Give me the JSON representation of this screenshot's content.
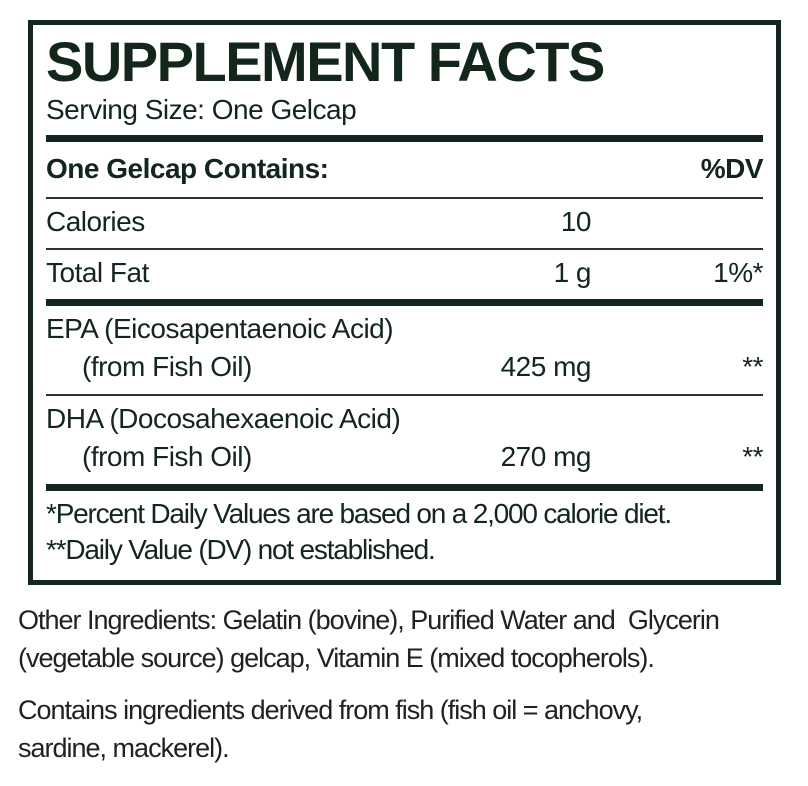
{
  "supplement_panel": {
    "title": "SUPPLEMENT FACTS",
    "serving_size": "Serving Size: One Gelcap",
    "columns": {
      "contains": "One Gelcap Contains:",
      "dv": "%DV"
    },
    "rows": [
      {
        "name": "Calories",
        "amount": "10",
        "dv": ""
      },
      {
        "name": "Total Fat",
        "amount": "1 g",
        "dv": "1%*"
      },
      {
        "name": "EPA (Eicosapentaenoic Acid)",
        "name_sub": "(from Fish Oil)",
        "amount": "425 mg",
        "dv": "**"
      },
      {
        "name": "DHA (Docosahexaenoic Acid)",
        "name_sub": "(from Fish Oil)",
        "amount": "270 mg",
        "dv": "**"
      }
    ],
    "footnotes": [
      "*Percent Daily Values are based on a 2,000 calorie diet.",
      "**Daily Value (DV) not established."
    ]
  },
  "footer": {
    "other_ingredients_lines": [
      "Other Ingredients: Gelatin (bovine), Purified Water and  Glycerin",
      "(vegetable source) gelcap, Vitamin E (mixed tocopherols)."
    ],
    "contains_lines": [
      "Contains ingredients derived from fish (fish oil = anchovy,",
      "sardine, mackerel)."
    ]
  },
  "colors": {
    "ink_green": "#13261b",
    "ink_black": "#232021"
  }
}
